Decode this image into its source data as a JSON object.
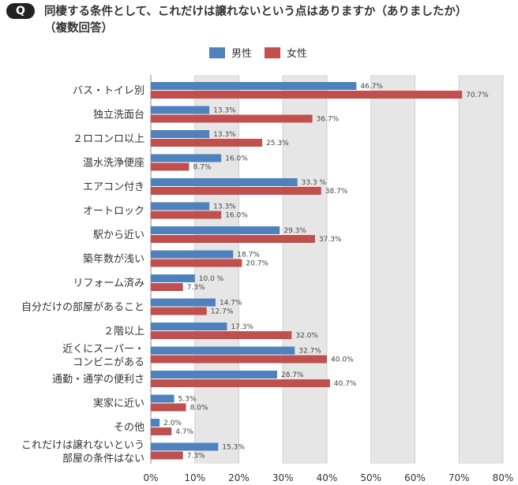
{
  "question": {
    "badge": "Q",
    "title_line1": "同棲する条件として、これだけは譲れないという点はありますか（ありましたか）",
    "title_line2": "（複数回答）"
  },
  "chart_data": {
    "type": "bar",
    "orientation": "horizontal",
    "title": "同棲する条件として、これだけは譲れないという点はありますか（ありましたか）（複数回答）",
    "categories": [
      [
        "バス・トイレ別"
      ],
      [
        "独立洗面台"
      ],
      [
        "２ロコンロ以上"
      ],
      [
        "温水洗浄便座"
      ],
      [
        "エアコン付き"
      ],
      [
        "オートロック"
      ],
      [
        "駅から近い"
      ],
      [
        "築年数が浅い"
      ],
      [
        "リフォーム済み"
      ],
      [
        "自分だけの部屋があること"
      ],
      [
        "２階以上"
      ],
      [
        "近くにスーパー・",
        "コンビニがある"
      ],
      [
        "通勤・通学の便利さ"
      ],
      [
        "実家に近い"
      ],
      [
        "その他"
      ],
      [
        "これだけは譲れないという",
        "部屋の条件はない"
      ]
    ],
    "series": [
      {
        "name": "男性",
        "color": "#4f81bd",
        "values": [
          46.7,
          13.3,
          13.3,
          16.0,
          33.3,
          13.3,
          29.3,
          18.7,
          10.0,
          14.7,
          17.3,
          32.7,
          28.7,
          5.3,
          2.0,
          15.3
        ],
        "labels": [
          "46.7%",
          "13.3%",
          "13.3%",
          "16.0%",
          "33.3 %",
          "13.3%",
          "29.3%",
          "18.7%",
          "10.0 %",
          "14.7%",
          "17.3%",
          "32.7%",
          "28.7%",
          "5.3%",
          "2.0%",
          "15.3%"
        ]
      },
      {
        "name": "女性",
        "color": "#c0504d",
        "values": [
          70.7,
          36.7,
          25.3,
          8.7,
          38.7,
          16.0,
          37.3,
          20.7,
          7.3,
          12.7,
          32.0,
          40.0,
          40.7,
          8.0,
          4.7,
          7.3
        ],
        "labels": [
          "70.7%",
          "36.7%",
          "25.3%",
          "8.7%",
          "38.7%",
          "16.0%",
          "37.3%",
          "20.7%",
          "7.3%",
          "12.7%",
          "32.0%",
          "40.0%",
          "40.7%",
          "8.0%",
          "4.7%",
          "7.3%"
        ]
      }
    ],
    "xlim": [
      0,
      80
    ],
    "xticks": [
      "0%",
      "10%",
      "20%",
      "30%",
      "40%",
      "50%",
      "60%",
      "70%",
      "80%"
    ],
    "band_color": "#e6e6e6",
    "legend_position": "top-center",
    "xlabel": "",
    "ylabel": ""
  }
}
